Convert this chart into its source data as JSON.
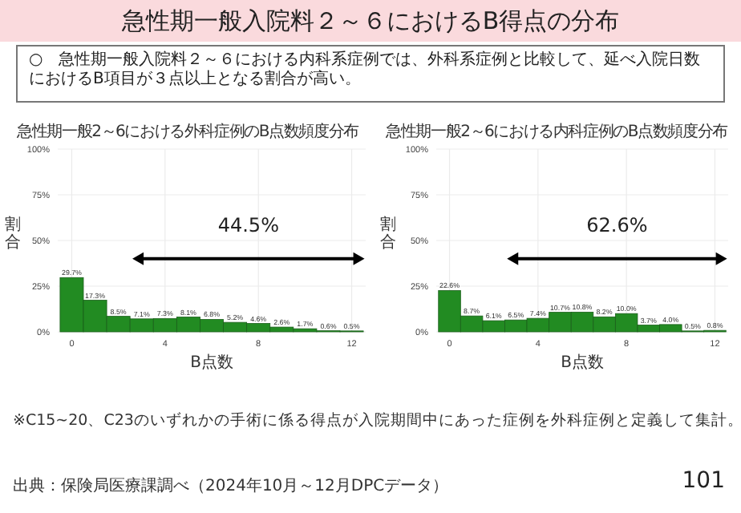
{
  "chart_data": [
    {
      "type": "bar",
      "title": "急性期一般2～6における外科症例のB点数頻度分布",
      "xlabel": "B点数",
      "ylabel": "割合",
      "categories": [
        "0",
        null,
        null,
        null,
        "4",
        null,
        null,
        null,
        "8",
        null,
        null,
        null,
        "12"
      ],
      "values": [
        29.7,
        17.3,
        8.5,
        7.1,
        7.3,
        8.1,
        6.8,
        5.2,
        4.6,
        2.6,
        1.7,
        0.6,
        0.5
      ],
      "value_labels": [
        "29.7%",
        "17.3%",
        "8.5%",
        "7.1%",
        "7.3%",
        "8.1%",
        "6.8%",
        "5.2%",
        "4.6%",
        "2.6%",
        "1.7%",
        "0.6%",
        "0.5%"
      ],
      "color": "#228b22",
      "ylim": [
        0,
        100
      ],
      "yticks": [
        {
          "value": 0,
          "label": "0%"
        },
        {
          "value": 25,
          "label": "25%"
        },
        {
          "value": 50,
          "label": "50%"
        },
        {
          "value": 75,
          "label": "75%"
        },
        {
          "value": 100,
          "label": "100%"
        }
      ],
      "grid": true,
      "annotations": [
        "44.5%",
        "急性期一般入院料２～６におけるB得点の分布",
        "○　急性期一般入院料２～６における内科系症例では、外科系症例と比較して、延べ入院日数におけるB項目が３点以上となる割合が高い。",
        "※C15~20、C23のいずれかの手術に係る得点が入院期間中にあった症例を外科症例と定義して集計。",
        "出典：保険局医療課調べ（2024年10月～12月DPCデータ）",
        "101"
      ]
    },
    {
      "type": "bar",
      "title": "急性期一般2～6における内科症例のB点数頻度分布",
      "xlabel": "B点数",
      "ylabel": "割合",
      "categories": [
        "0",
        null,
        null,
        null,
        "4",
        null,
        null,
        null,
        "8",
        null,
        null,
        null,
        "12"
      ],
      "values": [
        22.6,
        8.7,
        6.1,
        6.5,
        7.4,
        10.7,
        10.8,
        8.2,
        10.0,
        3.7,
        4.0,
        0.5,
        0.8
      ],
      "value_labels": [
        "22.6%",
        "8.7%",
        "6.1%",
        "6.5%",
        "7.4%",
        "10.7%",
        "10.8%",
        "8.2%",
        "10.0%",
        "3.7%",
        "4.0%",
        "0.5%",
        "0.8%"
      ],
      "color": "#228b22",
      "ylim": [
        0,
        100
      ],
      "yticks": [
        {
          "value": 0,
          "label": "0%"
        },
        {
          "value": 25,
          "label": "25%"
        },
        {
          "value": 50,
          "label": "50%"
        },
        {
          "value": 75,
          "label": "75%"
        },
        {
          "value": 100,
          "label": "100%"
        }
      ],
      "grid": true,
      "annotations": [
        "62.6%"
      ]
    }
  ]
}
